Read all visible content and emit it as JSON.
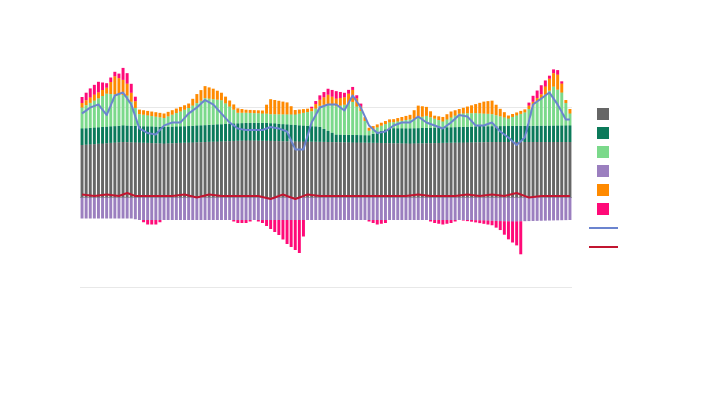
{
  "chart_data": {
    "type": "bar",
    "barmode": "relative",
    "title": "",
    "xlabel": "",
    "ylabel": "",
    "x_count": 120,
    "ylim": [
      -75,
      65
    ],
    "gridlines_y": [
      60,
      -60
    ],
    "grid": true,
    "legend_placement": "right",
    "tick_labels_visible": false,
    "series": [
      {
        "name": "",
        "kind": "bar",
        "color": "#666666",
        "values": [
          [
            0,
            35
          ],
          [
            10,
            37
          ],
          [
            20,
            36
          ],
          [
            40,
            38
          ],
          [
            60,
            37
          ],
          [
            80,
            36
          ],
          [
            100,
            37
          ],
          [
            119,
            37
          ]
        ]
      },
      {
        "name": "",
        "kind": "bar",
        "color": "#0b7a5a",
        "values": [
          [
            0,
            11
          ],
          [
            25,
            11
          ],
          [
            45,
            12
          ],
          [
            58,
            10
          ],
          [
            62,
            5
          ],
          [
            70,
            5
          ],
          [
            75,
            10
          ],
          [
            119,
            11
          ]
        ]
      },
      {
        "name": "",
        "kind": "bar",
        "color": "#7bd98b",
        "values": [
          [
            0,
            14
          ],
          [
            6,
            22
          ],
          [
            11,
            20
          ],
          [
            14,
            8
          ],
          [
            20,
            6
          ],
          [
            26,
            12
          ],
          [
            30,
            18
          ],
          [
            34,
            16
          ],
          [
            38,
            7
          ],
          [
            46,
            6
          ],
          [
            52,
            7
          ],
          [
            56,
            10
          ],
          [
            60,
            18
          ],
          [
            64,
            20
          ],
          [
            66,
            22
          ],
          [
            68,
            16
          ],
          [
            70,
            3
          ],
          [
            76,
            4
          ],
          [
            80,
            6
          ],
          [
            84,
            8
          ],
          [
            88,
            4
          ],
          [
            92,
            9
          ],
          [
            96,
            9
          ],
          [
            100,
            8
          ],
          [
            104,
            5
          ],
          [
            108,
            9
          ],
          [
            112,
            18
          ],
          [
            115,
            26
          ],
          [
            117,
            22
          ],
          [
            119,
            8
          ]
        ]
      },
      {
        "name": "",
        "kind": "bar",
        "color": "#9b7fbf",
        "values": [
          [
            0,
            -14
          ],
          [
            12,
            -14
          ],
          [
            14,
            -15
          ],
          [
            25,
            -15
          ],
          [
            40,
            -15
          ],
          [
            60,
            -15
          ],
          [
            75,
            -15
          ],
          [
            95,
            -15
          ],
          [
            105,
            -16
          ],
          [
            119,
            -15
          ]
        ]
      },
      {
        "name": "",
        "kind": "bar",
        "color": "#ff8a00",
        "values": [
          [
            0,
            3
          ],
          [
            3,
            4
          ],
          [
            6,
            4
          ],
          [
            8,
            12
          ],
          [
            10,
            10
          ],
          [
            12,
            6
          ],
          [
            14,
            3
          ],
          [
            22,
            3
          ],
          [
            26,
            3
          ],
          [
            28,
            6
          ],
          [
            30,
            8
          ],
          [
            32,
            7
          ],
          [
            34,
            5
          ],
          [
            38,
            3
          ],
          [
            40,
            2
          ],
          [
            44,
            2
          ],
          [
            46,
            10
          ],
          [
            48,
            9
          ],
          [
            50,
            8
          ],
          [
            52,
            3
          ],
          [
            56,
            2
          ],
          [
            60,
            6
          ],
          [
            62,
            5
          ],
          [
            64,
            5
          ],
          [
            66,
            8
          ],
          [
            68,
            3
          ],
          [
            70,
            2
          ],
          [
            74,
            2
          ],
          [
            76,
            2
          ],
          [
            80,
            3
          ],
          [
            82,
            8
          ],
          [
            84,
            6
          ],
          [
            86,
            2
          ],
          [
            90,
            4
          ],
          [
            92,
            3
          ],
          [
            96,
            6
          ],
          [
            98,
            8
          ],
          [
            100,
            9
          ],
          [
            102,
            5
          ],
          [
            104,
            2
          ],
          [
            108,
            2
          ],
          [
            112,
            3
          ],
          [
            114,
            8
          ],
          [
            116,
            10
          ],
          [
            118,
            2
          ],
          [
            119,
            3
          ]
        ]
      },
      {
        "name": "",
        "kind": "bar",
        "color": "#ff0a78",
        "values": [
          [
            0,
            4
          ],
          [
            2,
            6
          ],
          [
            4,
            7
          ],
          [
            6,
            3
          ],
          [
            9,
            3
          ],
          [
            10,
            8
          ],
          [
            12,
            6
          ],
          [
            14,
            0
          ],
          [
            16,
            -3
          ],
          [
            18,
            -3
          ],
          [
            20,
            0
          ],
          [
            36,
            0
          ],
          [
            38,
            -2
          ],
          [
            40,
            -2
          ],
          [
            42,
            0
          ],
          [
            44,
            -2
          ],
          [
            46,
            -6
          ],
          [
            48,
            -10
          ],
          [
            50,
            -16
          ],
          [
            52,
            -20
          ],
          [
            53,
            -22
          ],
          [
            55,
            0
          ],
          [
            58,
            3
          ],
          [
            60,
            4
          ],
          [
            62,
            5
          ],
          [
            64,
            3
          ],
          [
            66,
            2
          ],
          [
            68,
            2
          ],
          [
            69,
            0
          ],
          [
            72,
            -3
          ],
          [
            74,
            -2
          ],
          [
            75,
            0
          ],
          [
            84,
            0
          ],
          [
            86,
            -2
          ],
          [
            88,
            -3
          ],
          [
            90,
            -2
          ],
          [
            92,
            0
          ],
          [
            100,
            -3
          ],
          [
            102,
            -6
          ],
          [
            104,
            -12
          ],
          [
            106,
            -16
          ],
          [
            107,
            -22
          ],
          [
            108,
            0
          ],
          [
            110,
            4
          ],
          [
            112,
            6
          ],
          [
            114,
            2
          ],
          [
            116,
            3
          ],
          [
            118,
            0
          ],
          [
            119,
            0
          ]
        ]
      },
      {
        "name": "",
        "kind": "line",
        "color": "#6b84cf",
        "width": 2,
        "values": [
          [
            0,
            56
          ],
          [
            2,
            60
          ],
          [
            4,
            62
          ],
          [
            6,
            55
          ],
          [
            8,
            68
          ],
          [
            10,
            70
          ],
          [
            12,
            62
          ],
          [
            14,
            46
          ],
          [
            16,
            43
          ],
          [
            18,
            42
          ],
          [
            20,
            48
          ],
          [
            22,
            50
          ],
          [
            24,
            50
          ],
          [
            26,
            56
          ],
          [
            28,
            60
          ],
          [
            30,
            65
          ],
          [
            32,
            62
          ],
          [
            34,
            56
          ],
          [
            36,
            50
          ],
          [
            38,
            46
          ],
          [
            40,
            45
          ],
          [
            44,
            45
          ],
          [
            46,
            47
          ],
          [
            48,
            46
          ],
          [
            50,
            44
          ],
          [
            52,
            32
          ],
          [
            54,
            32
          ],
          [
            56,
            50
          ],
          [
            58,
            60
          ],
          [
            60,
            62
          ],
          [
            62,
            62
          ],
          [
            64,
            58
          ],
          [
            66,
            68
          ],
          [
            68,
            60
          ],
          [
            70,
            48
          ],
          [
            72,
            43
          ],
          [
            74,
            44
          ],
          [
            76,
            48
          ],
          [
            78,
            50
          ],
          [
            80,
            50
          ],
          [
            82,
            54
          ],
          [
            84,
            50
          ],
          [
            86,
            48
          ],
          [
            88,
            46
          ],
          [
            90,
            50
          ],
          [
            92,
            55
          ],
          [
            94,
            54
          ],
          [
            96,
            48
          ],
          [
            98,
            48
          ],
          [
            100,
            50
          ],
          [
            102,
            44
          ],
          [
            104,
            40
          ],
          [
            106,
            35
          ],
          [
            108,
            40
          ],
          [
            110,
            62
          ],
          [
            112,
            66
          ],
          [
            114,
            70
          ],
          [
            116,
            62
          ],
          [
            118,
            52
          ],
          [
            119,
            52
          ]
        ]
      },
      {
        "name": "",
        "kind": "line",
        "color": "#c21530",
        "width": 2,
        "values": [
          [
            0,
            2
          ],
          [
            3,
            1
          ],
          [
            6,
            2
          ],
          [
            9,
            1
          ],
          [
            11,
            3
          ],
          [
            13,
            1
          ],
          [
            16,
            1
          ],
          [
            19,
            1
          ],
          [
            22,
            1
          ],
          [
            25,
            2
          ],
          [
            28,
            0
          ],
          [
            31,
            2
          ],
          [
            34,
            1
          ],
          [
            37,
            1
          ],
          [
            40,
            1
          ],
          [
            43,
            1
          ],
          [
            46,
            -1
          ],
          [
            49,
            2
          ],
          [
            52,
            -1
          ],
          [
            55,
            2
          ],
          [
            58,
            1
          ],
          [
            61,
            1
          ],
          [
            64,
            1
          ],
          [
            67,
            1
          ],
          [
            70,
            1
          ],
          [
            73,
            1
          ],
          [
            76,
            1
          ],
          [
            79,
            1
          ],
          [
            82,
            2
          ],
          [
            85,
            1
          ],
          [
            88,
            1
          ],
          [
            91,
            1
          ],
          [
            94,
            2
          ],
          [
            97,
            1
          ],
          [
            100,
            2
          ],
          [
            103,
            1
          ],
          [
            106,
            3
          ],
          [
            109,
            0
          ],
          [
            112,
            1
          ],
          [
            115,
            1
          ],
          [
            118,
            1
          ],
          [
            119,
            1
          ]
        ]
      }
    ]
  }
}
